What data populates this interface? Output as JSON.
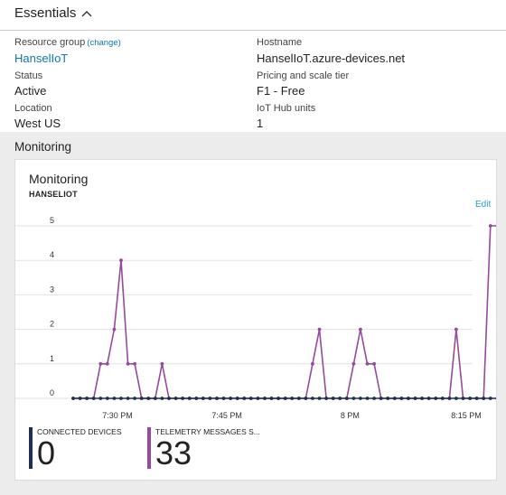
{
  "essentials": {
    "title": "Essentials",
    "resource_group_label": "Resource group",
    "resource_group_change": "(change)",
    "resource_group_value": "HanselIoT",
    "status_label": "Status",
    "status_value": "Active",
    "location_label": "Location",
    "location_value": "West US",
    "hostname_label": "Hostname",
    "hostname_value": "HanselIoT.azure-devices.net",
    "pricing_label": "Pricing and scale tier",
    "pricing_value": "F1 - Free",
    "units_label": "IoT Hub units",
    "units_value": "1"
  },
  "monitoring": {
    "section_title": "Monitoring",
    "tile_title": "Monitoring",
    "tile_subtitle": "HANSELIOT",
    "edit_label": "Edit",
    "kpis": [
      {
        "label": "CONNECTED DEVICES",
        "value": "0",
        "color": "#1e2f52"
      },
      {
        "label": "TELEMETRY MESSAGES S...",
        "value": "33",
        "color": "#944b9a"
      }
    ]
  },
  "chart_data": {
    "type": "line",
    "y_ticks": [
      "0",
      "1",
      "2",
      "3",
      "4",
      "5"
    ],
    "ylim": [
      0,
      5.5
    ],
    "x_ticks": [
      "7:30 PM",
      "7:45 PM",
      "8 PM",
      "8:15 PM"
    ],
    "series": [
      {
        "name": "TELEMETRY MESSAGES S...",
        "color": "#944b9a",
        "values": [
          0,
          0,
          0,
          0,
          1,
          1,
          2,
          4,
          1,
          1,
          0,
          0,
          0,
          1,
          0,
          0,
          0,
          0,
          0,
          0,
          0,
          0,
          0,
          0,
          0,
          0,
          0,
          0,
          0,
          0,
          0,
          0,
          0,
          0,
          0,
          1,
          2,
          0,
          0,
          0,
          0,
          1,
          2,
          1,
          1,
          0,
          0,
          0,
          0,
          0,
          0,
          0,
          0,
          0,
          0,
          0,
          2,
          0,
          0,
          0,
          0,
          5,
          5,
          2
        ]
      },
      {
        "name": "CONNECTED DEVICES",
        "color": "#1e2f52",
        "values": [
          0,
          0,
          0,
          0,
          0,
          0,
          0,
          0,
          0,
          0,
          0,
          0,
          0,
          0,
          0,
          0,
          0,
          0,
          0,
          0,
          0,
          0,
          0,
          0,
          0,
          0,
          0,
          0,
          0,
          0,
          0,
          0,
          0,
          0,
          0,
          0,
          0,
          0,
          0,
          0,
          0,
          0,
          0,
          0,
          0,
          0,
          0,
          0,
          0,
          0,
          0,
          0,
          0,
          0,
          0,
          0,
          0,
          0,
          0,
          0,
          0,
          0,
          0,
          0
        ]
      }
    ]
  }
}
